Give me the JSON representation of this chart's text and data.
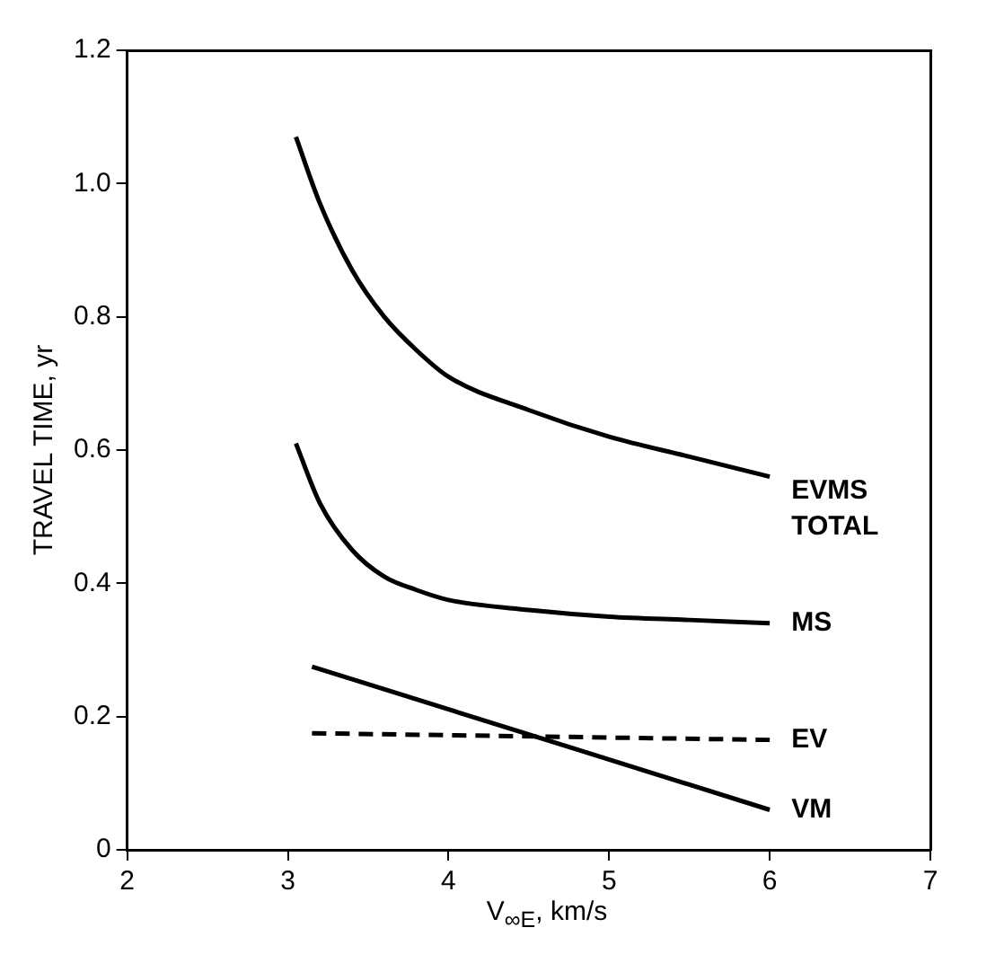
{
  "chart_data": {
    "type": "line",
    "xlabel": "V$_{∞E}$, km/s",
    "ylabel": "TRAVEL TIME, yr",
    "xlim": [
      2,
      7
    ],
    "xticks": [
      2,
      3,
      4,
      5,
      6,
      7
    ],
    "ylim": [
      0,
      1.2
    ],
    "yticks": [
      0,
      0.2,
      0.4,
      0.6,
      0.8,
      {
        "value": 1,
        "label": "1.0"
      },
      {
        "value": 1.2,
        "label": "1.2"
      }
    ],
    "grid": false,
    "legend": false,
    "marker": "none",
    "series": [
      {
        "name": "EVMS TOTAL",
        "color": "#000000",
        "x": [
          3.05,
          3.2,
          3.4,
          3.6,
          3.8,
          4,
          4.5,
          5,
          5.5,
          6
        ],
        "values": [
          1.07,
          0.97,
          0.87,
          0.8,
          0.75,
          0.71,
          0.66,
          0.62,
          0.59,
          0.56
        ]
      },
      {
        "name": "MS",
        "color": "#000000",
        "x": [
          3.05,
          3.2,
          3.4,
          3.6,
          3.8,
          4,
          4.5,
          5,
          5.5,
          6
        ],
        "values": [
          0.61,
          0.52,
          0.45,
          0.41,
          0.39,
          0.375,
          0.36,
          0.35,
          0.345,
          0.34
        ]
      },
      {
        "name": "EV",
        "color": "#000000",
        "line_style": "dashed",
        "x": [
          3.15,
          6
        ],
        "values": [
          0.175,
          0.165
        ]
      },
      {
        "name": "VM",
        "color": "#000000",
        "x": [
          3.15,
          6
        ],
        "values": [
          0.275,
          0.06
        ]
      }
    ]
  }
}
